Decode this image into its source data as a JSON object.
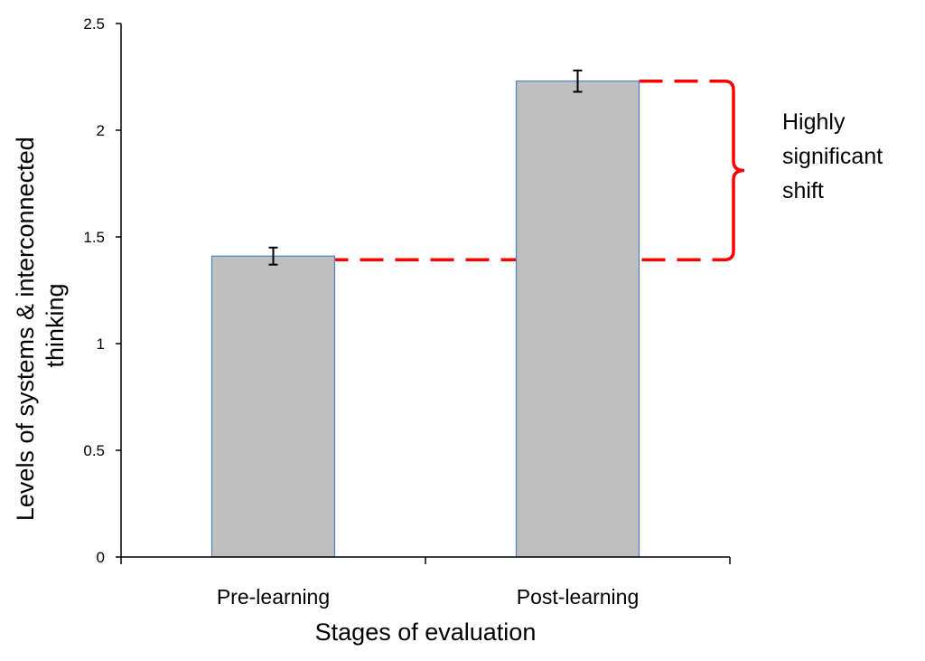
{
  "chart_data": {
    "type": "bar",
    "categories": [
      "Pre-learning",
      "Post-learning"
    ],
    "values": [
      1.41,
      2.23
    ],
    "error": [
      0.04,
      0.05
    ],
    "xlabel": "Stages of evaluation",
    "ylabel": [
      "Levels of systems & interconnected",
      "thinking"
    ],
    "ylim": [
      0,
      2.5
    ],
    "yticks": [
      "0",
      "0.5",
      "1",
      "1.5",
      "2",
      "2.5"
    ],
    "grid": false,
    "bar_color": "#bfbfbf",
    "bar_edge_color": "#4f81bd",
    "annotation": {
      "lines": [
        "Highly",
        "significant",
        "shift"
      ],
      "color": "#ff0000"
    }
  }
}
